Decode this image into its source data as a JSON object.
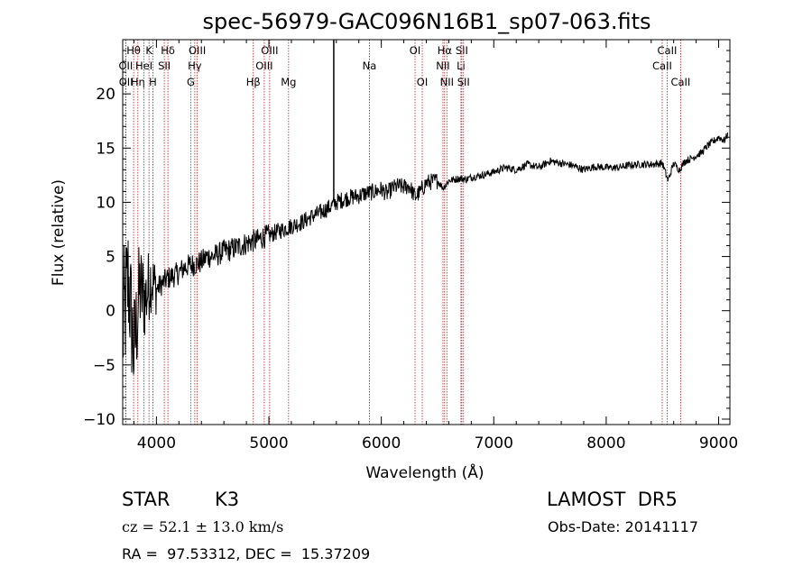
{
  "chart_data": {
    "type": "line",
    "title": "spec-56979-GAC096N16B1_sp07-063.fits",
    "xlabel": "Wavelength (Å)",
    "ylabel": "Flux (relative)",
    "xlim": [
      3700,
      9100
    ],
    "ylim": [
      -10.5,
      25
    ],
    "xticks": [
      4000,
      5000,
      6000,
      7000,
      8000,
      9000
    ],
    "yticks": [
      -10,
      -5,
      0,
      5,
      10,
      15,
      20
    ],
    "grid": false,
    "series": [
      {
        "x": [
          3700,
          3750,
          3800,
          3850,
          3900,
          3950,
          4000,
          4050,
          4100,
          4150,
          4200,
          4250,
          4300,
          4350,
          4400,
          4450,
          4500,
          4550,
          4600,
          4650,
          4700,
          4750,
          4800,
          4850,
          4900,
          4950,
          5000,
          5050,
          5100,
          5150,
          5200,
          5250,
          5300,
          5350,
          5400,
          5450,
          5500,
          5550,
          5600,
          5650,
          5700,
          5750,
          5800,
          5850,
          5900,
          5950,
          6000,
          6050,
          6100,
          6150,
          6200,
          6250,
          6300,
          6350,
          6400,
          6450,
          6500,
          6550,
          6600,
          6650,
          6700,
          6750,
          6800,
          6900,
          7000,
          7100,
          7200,
          7300,
          7400,
          7500,
          7600,
          7700,
          7800,
          7900,
          8000,
          8100,
          8200,
          8300,
          8400,
          8500,
          8550,
          8600,
          8650,
          8700,
          8750,
          8800,
          8850,
          8900,
          8950,
          9000,
          9050,
          9080
        ],
        "values": [
          -2.0,
          3.0,
          -4.0,
          2.0,
          1.0,
          3.0,
          2.0,
          2.5,
          3.0,
          3.2,
          3.5,
          4.0,
          4.2,
          4.3,
          4.5,
          5.0,
          5.0,
          5.2,
          5.5,
          5.6,
          5.8,
          6.0,
          6.2,
          6.4,
          6.5,
          6.8,
          6.9,
          7.2,
          7.4,
          7.6,
          7.8,
          8.0,
          8.2,
          8.5,
          8.8,
          9.0,
          9.3,
          9.6,
          10.0,
          10.2,
          10.4,
          10.5,
          10.6,
          10.8,
          10.9,
          11.0,
          11.2,
          10.8,
          11.3,
          11.5,
          11.4,
          11.5,
          10.5,
          11.0,
          11.8,
          11.9,
          12.0,
          11.3,
          12.0,
          12.1,
          12.2,
          12.1,
          12.3,
          12.5,
          12.8,
          13.2,
          13.0,
          13.5,
          13.2,
          13.8,
          13.6,
          13.4,
          13.0,
          13.3,
          13.2,
          13.2,
          13.4,
          13.5,
          13.5,
          13.6,
          12.0,
          13.6,
          13.0,
          13.8,
          14.0,
          14.3,
          14.6,
          15.2,
          15.6,
          16.0,
          15.7,
          16.2
        ]
      }
    ],
    "spectral_lines": [
      {
        "label": "Hθ",
        "wave": 3797,
        "row": 0
      },
      {
        "label": "OII",
        "wave": 3727,
        "row": 1
      },
      {
        "label": "OII",
        "wave": 3729,
        "row": 2
      },
      {
        "label": "Hη",
        "wave": 3835,
        "row": 2
      },
      {
        "label": "K",
        "wave": 3934,
        "row": 0
      },
      {
        "label": "HeI",
        "wave": 3889,
        "row": 1
      },
      {
        "label": "H",
        "wave": 3968,
        "row": 2
      },
      {
        "label": "Hδ",
        "wave": 4102,
        "row": 0
      },
      {
        "label": "SII",
        "wave": 4070,
        "row": 1
      },
      {
        "label": "OIII",
        "wave": 4363,
        "row": 0
      },
      {
        "label": "Hγ",
        "wave": 4341,
        "row": 1
      },
      {
        "label": "G",
        "wave": 4305,
        "row": 2
      },
      {
        "label": "OIII",
        "wave": 5007,
        "row": 0
      },
      {
        "label": "OIII",
        "wave": 4959,
        "row": 1
      },
      {
        "label": "Hβ",
        "wave": 4861,
        "row": 2
      },
      {
        "label": "Mg",
        "wave": 5175,
        "row": 2
      },
      {
        "label": "Na",
        "wave": 5894,
        "row": 1
      },
      {
        "label": "OI",
        "wave": 6300,
        "row": 0
      },
      {
        "label": "OI",
        "wave": 6364,
        "row": 2
      },
      {
        "label": "Hα",
        "wave": 6563,
        "row": 0
      },
      {
        "label": "NII",
        "wave": 6548,
        "row": 1
      },
      {
        "label": "NII",
        "wave": 6583,
        "row": 2
      },
      {
        "label": "SII",
        "wave": 6716,
        "row": 0
      },
      {
        "label": "Li",
        "wave": 6708,
        "row": 1
      },
      {
        "label": "SII",
        "wave": 6731,
        "row": 2
      },
      {
        "label": "CaII",
        "wave": 8542,
        "row": 0
      },
      {
        "label": "CaII",
        "wave": 8498,
        "row": 1
      },
      {
        "label": "CaII",
        "wave": 8662,
        "row": 2
      }
    ],
    "spike_wave": 5577,
    "line_color": "#000000",
    "marker_color": "#b22222"
  },
  "info": {
    "object_class": "STAR",
    "subclass": "K3",
    "survey": "LAMOST  DR5",
    "cz": "cz = 52.1 ± 13.0 km/s",
    "obs_date": "Obs-Date: 20141117",
    "coords": "RA =  97.53312, DEC =  15.37209"
  }
}
